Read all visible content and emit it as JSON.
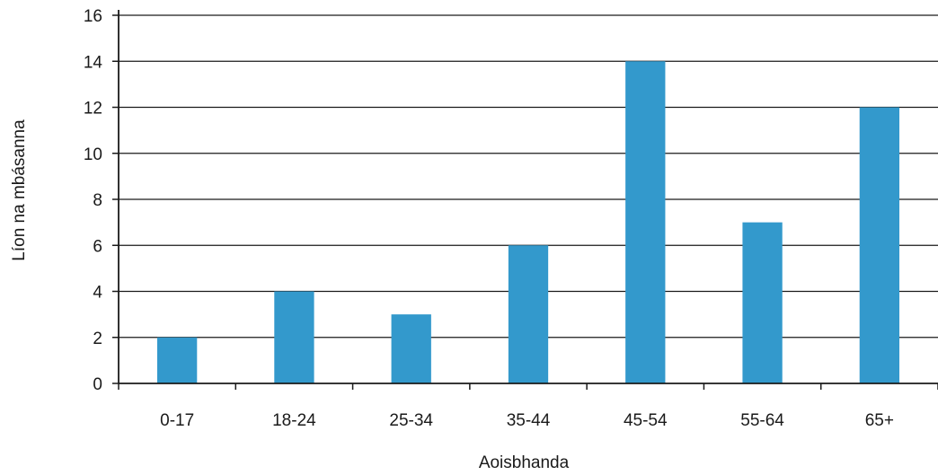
{
  "chart_data": {
    "type": "bar",
    "categories": [
      "0-17",
      "18-24",
      "25-34",
      "35-44",
      "45-54",
      "55-64",
      "65+"
    ],
    "values": [
      2,
      4,
      3,
      6,
      14,
      7,
      12
    ],
    "title": "",
    "xlabel": "Aoisbhanda",
    "ylabel": "Líon na mbásanna",
    "ylim": [
      0,
      16
    ],
    "yticks": [
      0,
      2,
      4,
      6,
      8,
      10,
      12,
      14,
      16
    ],
    "grid": true,
    "legend": "none",
    "bar_color": "#3399cc",
    "grid_color": "#1a1a1a",
    "axis_color": "#1a1a1a"
  }
}
